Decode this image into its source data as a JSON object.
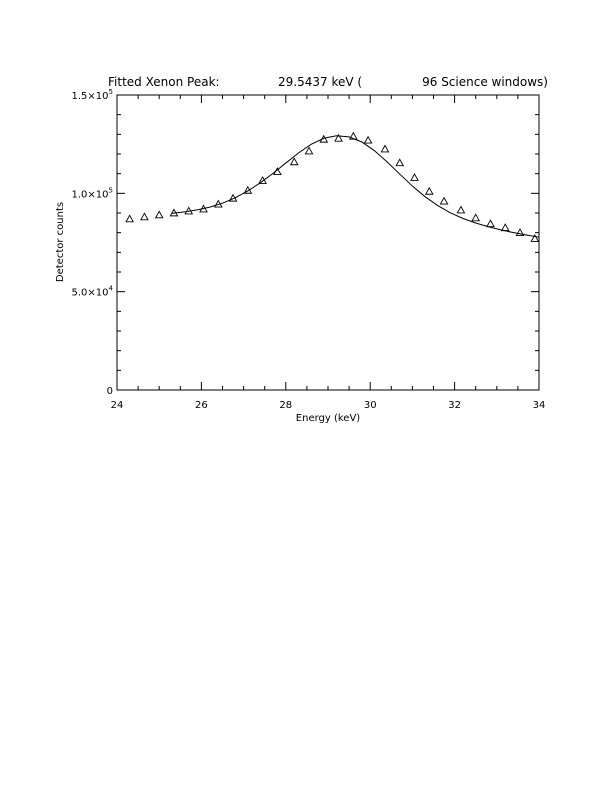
{
  "chart_data": {
    "type": "scatter",
    "title": {
      "left": "Fitted Xenon Peak:",
      "value": "29.5437 keV (",
      "windows": "96 Science windows)"
    },
    "xlabel": "Energy (keV)",
    "ylabel": "Detector counts",
    "xlim": [
      24,
      34
    ],
    "ylim": [
      0,
      150000
    ],
    "x_ticks": [
      24,
      26,
      28,
      30,
      32,
      34
    ],
    "y_ticks": [
      {
        "value": 0,
        "mantissa": "0",
        "exp": ""
      },
      {
        "value": 50000,
        "mantissa": "5.0×10",
        "exp": "4"
      },
      {
        "value": 100000,
        "mantissa": "1.0×10",
        "exp": "5"
      },
      {
        "value": 150000,
        "mantissa": "1.5×10",
        "exp": "5"
      }
    ],
    "marker": "triangle",
    "series": [
      {
        "x": [
          24.3,
          24.65,
          25.0,
          25.35,
          25.7,
          26.05,
          26.4,
          26.75,
          27.1,
          27.45,
          27.8,
          28.2,
          28.55,
          28.9,
          29.25,
          29.6,
          29.95,
          30.35,
          30.7,
          31.05,
          31.4,
          31.75,
          32.15,
          32.5,
          32.85,
          33.2,
          33.55,
          33.9
        ],
        "y": [
          87000,
          88000,
          89000,
          90000,
          91000,
          92000,
          94500,
          97500,
          101500,
          106500,
          111000,
          116000,
          121500,
          127500,
          128000,
          129000,
          127000,
          122500,
          115500,
          108000,
          101000,
          96000,
          91500,
          87500,
          84500,
          82500,
          80000,
          77000
        ]
      }
    ],
    "fit": {
      "x": [
        25.3,
        25.6,
        25.9,
        26.2,
        26.5,
        26.8,
        27.1,
        27.4,
        27.7,
        28.0,
        28.3,
        28.6,
        28.9,
        29.2,
        29.5,
        29.8,
        30.1,
        30.4,
        30.7,
        31.0,
        31.3,
        31.6,
        31.9,
        32.2,
        32.5,
        32.8,
        33.1,
        33.4,
        33.7,
        34.0
      ],
      "y": [
        89800,
        90600,
        91600,
        93000,
        95000,
        97700,
        101200,
        105400,
        110200,
        115400,
        120500,
        124900,
        128000,
        129300,
        128700,
        126100,
        121700,
        116000,
        109800,
        103700,
        98300,
        93800,
        90100,
        87200,
        84900,
        83000,
        81400,
        80000,
        78800,
        77700
      ]
    }
  }
}
